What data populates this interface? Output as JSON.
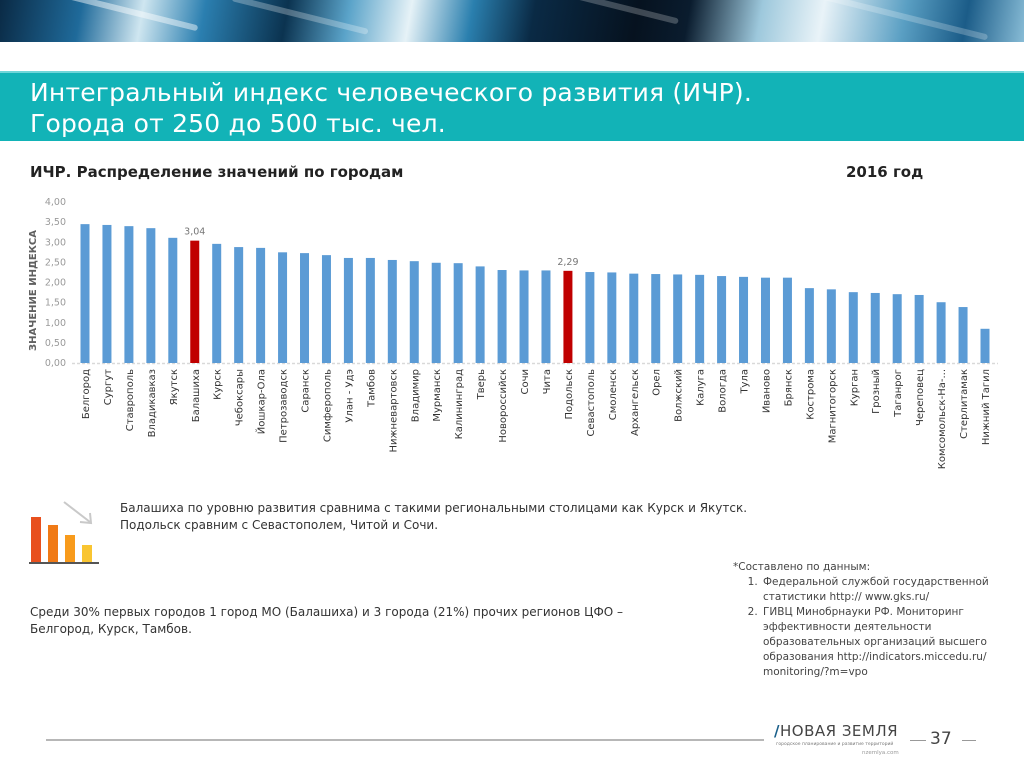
{
  "header": {
    "title_line1": "Интегральный индекс человеческого развития (ИЧР).",
    "title_line2": "Города от 250 до 500 тыс. чел."
  },
  "chart_header": {
    "title": "ИЧР. Распределение значений по городам",
    "year": "2016 год"
  },
  "chart_data": {
    "type": "bar",
    "title": "ИЧР. Распределение значений по городам",
    "xlabel": "",
    "ylabel": "ЗНАЧЕНИЕ ИНДЕКСА",
    "ylim": [
      0,
      4
    ],
    "yticks": [
      "0,00",
      "0,50",
      "1,00",
      "1,50",
      "2,00",
      "2,50",
      "3,00",
      "3,50",
      "4,00"
    ],
    "grid": false,
    "legend": "none",
    "categories": [
      "Белгород",
      "Сургут",
      "Ставрополь",
      "Владикавказ",
      "Якутск",
      "Балашиха",
      "Курск",
      "Чебоксары",
      "Йошкар-Ола",
      "Петрозаводск",
      "Саранск",
      "Симферополь",
      "Улан - Удэ",
      "Тамбов",
      "Нижневартовск",
      "Владимир",
      "Мурманск",
      "Калининград",
      "Тверь",
      "Новороссийск",
      "Сочи",
      "Чита",
      "Подольск",
      "Севастополь",
      "Смоленск",
      "Архангельск",
      "Орел",
      "Волжский",
      "Калуга",
      "Вологда",
      "Тула",
      "Иваново",
      "Брянск",
      "Кострома",
      "Магнитогорск",
      "Курган",
      "Грозный",
      "Таганрог",
      "Череповец",
      "Комсомольск-На-...",
      "Стерлитамак",
      "Нижний Тагил"
    ],
    "values": [
      3.45,
      3.43,
      3.4,
      3.35,
      3.11,
      3.04,
      2.96,
      2.88,
      2.86,
      2.75,
      2.73,
      2.68,
      2.61,
      2.61,
      2.56,
      2.53,
      2.49,
      2.48,
      2.4,
      2.31,
      2.3,
      2.3,
      2.29,
      2.26,
      2.25,
      2.22,
      2.21,
      2.2,
      2.19,
      2.16,
      2.14,
      2.12,
      2.12,
      1.86,
      1.83,
      1.76,
      1.74,
      1.71,
      1.69,
      1.51,
      1.39,
      0.85
    ],
    "highlighted": {
      "Балашиха": "3,04",
      "Подольск": "2,29"
    },
    "colors": {
      "bar": "#5b9bd5",
      "highlight": "#c00000",
      "axis": "#d9d9d9"
    }
  },
  "icon": {
    "name": "declining-bars-icon",
    "colors": [
      "#e8501e",
      "#f07a16",
      "#f89b1c",
      "#f9c531"
    ]
  },
  "notes": {
    "comparison_line1": "Балашиха по уровню развития сравнима с такими региональными столицами как Курск и Якутск.",
    "comparison_line2": "Подольск сравним с Севастополем, Читой и Сочи.",
    "summary_line1": "Среди 30% первых городов 1 город МО (Балашиха) и 3 города (21%) прочих регионов ЦФО –",
    "summary_line2": "Белгород, Курск, Тамбов."
  },
  "sources": {
    "heading": "*Составлено по данным:",
    "items": [
      "Федеральной службой государственной статистики http:// www.gks.ru/",
      "ГИВЦ Минобрнауки РФ. Мониторинг эффективности деятельности образовательных организаций высшего образования http://indicators.miccedu.ru/ monitoring/?m=vpo"
    ]
  },
  "footer": {
    "logo_name": "НОВАЯ ЗЕМЛЯ",
    "logo_subtitle": "городское планирование и развитие территорий",
    "logo_url": "nzemlya.com",
    "page_number": "37"
  },
  "theme": {
    "teal": "#12b3b7"
  }
}
